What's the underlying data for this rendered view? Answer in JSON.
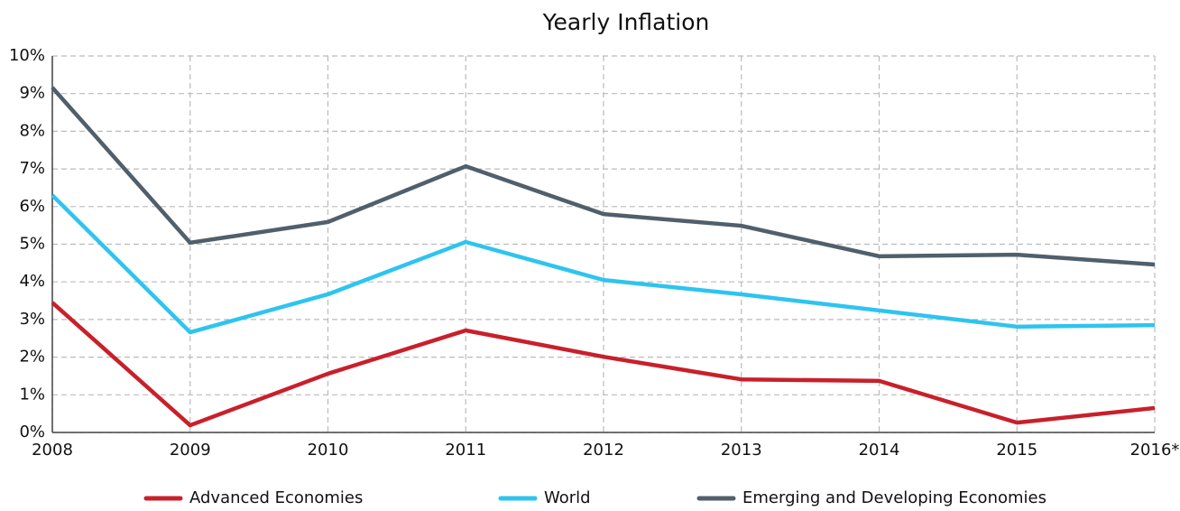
{
  "chart_data": {
    "type": "line",
    "title": "Yearly Inflation",
    "categories": [
      "2008",
      "2009",
      "2010",
      "2011",
      "2012",
      "2013",
      "2014",
      "2015",
      "2016*"
    ],
    "series": [
      {
        "name": "Advanced Economies",
        "color": "#c8202b",
        "values": [
          3.45,
          0.19,
          1.56,
          2.71,
          2.01,
          1.41,
          1.37,
          0.26,
          0.65
        ]
      },
      {
        "name": "World",
        "color": "#2ec4ef",
        "values": [
          6.3,
          2.66,
          3.67,
          5.06,
          4.05,
          3.67,
          3.24,
          2.81,
          2.85
        ]
      },
      {
        "name": "Emerging and Developing Economies",
        "color": "#505f6b",
        "values": [
          9.16,
          5.04,
          5.59,
          7.07,
          5.8,
          5.49,
          4.68,
          4.72,
          4.46
        ]
      }
    ],
    "ylim": [
      0,
      10
    ],
    "yticks": [
      {
        "value": 0,
        "label": "0%"
      },
      {
        "value": 1,
        "label": "1%"
      },
      {
        "value": 2,
        "label": "2%"
      },
      {
        "value": 3,
        "label": "3%"
      },
      {
        "value": 4,
        "label": "4%"
      },
      {
        "value": 5,
        "label": "5%"
      },
      {
        "value": 6,
        "label": "6%"
      },
      {
        "value": 7,
        "label": "7%"
      },
      {
        "value": 8,
        "label": "8%"
      },
      {
        "value": 9,
        "label": "9%"
      },
      {
        "value": 10,
        "label": "10%"
      }
    ],
    "grid": true,
    "legend": "bottom"
  }
}
